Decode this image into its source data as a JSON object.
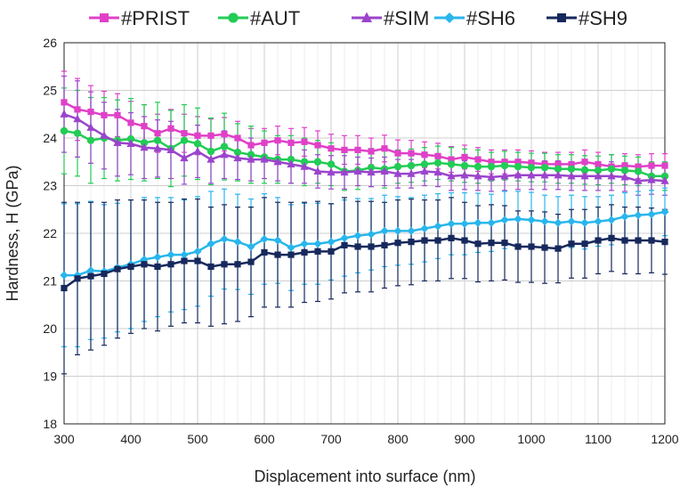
{
  "chart_data": {
    "type": "line",
    "xlabel": "Displacement into surface (nm)",
    "ylabel": "Hardness, H (GPa)",
    "xlim": [
      300,
      1200
    ],
    "ylim": [
      18,
      26
    ],
    "xticks": [
      300,
      400,
      500,
      600,
      700,
      800,
      900,
      1000,
      1100,
      1200
    ],
    "yticks": [
      18,
      19,
      20,
      21,
      22,
      23,
      24,
      25,
      26
    ],
    "grid": true,
    "legend": "top",
    "x": [
      300,
      320,
      340,
      360,
      380,
      400,
      420,
      440,
      460,
      480,
      500,
      520,
      540,
      560,
      580,
      600,
      620,
      640,
      660,
      680,
      700,
      720,
      740,
      760,
      780,
      800,
      820,
      840,
      860,
      880,
      900,
      920,
      940,
      960,
      980,
      1000,
      1020,
      1040,
      1060,
      1080,
      1100,
      1120,
      1140,
      1160,
      1180,
      1200
    ],
    "series": [
      {
        "name": "#PRIST",
        "color": "#e040c8",
        "marker": "square",
        "values": [
          24.75,
          24.6,
          24.55,
          24.48,
          24.48,
          24.32,
          24.25,
          24.1,
          24.2,
          24.1,
          24.05,
          24.05,
          24.08,
          24.0,
          23.85,
          23.9,
          23.95,
          23.9,
          23.92,
          23.85,
          23.78,
          23.75,
          23.75,
          23.72,
          23.78,
          23.68,
          23.68,
          23.65,
          23.62,
          23.55,
          23.6,
          23.55,
          23.5,
          23.5,
          23.5,
          23.48,
          23.45,
          23.45,
          23.45,
          23.5,
          23.45,
          23.4,
          23.42,
          23.4,
          23.42,
          23.42
        ],
        "errors": [
          0.65,
          0.65,
          0.55,
          0.5,
          0.45,
          0.45,
          0.45,
          0.4,
          0.4,
          0.4,
          0.4,
          0.35,
          0.35,
          0.35,
          0.35,
          0.3,
          0.3,
          0.3,
          0.3,
          0.3,
          0.3,
          0.3,
          0.3,
          0.28,
          0.28,
          0.28,
          0.27,
          0.27,
          0.27,
          0.27,
          0.25,
          0.25,
          0.25,
          0.25,
          0.25,
          0.25,
          0.25,
          0.25,
          0.25,
          0.25,
          0.25,
          0.25,
          0.25,
          0.25,
          0.25,
          0.25
        ]
      },
      {
        "name": "#AUT",
        "color": "#22cc55",
        "marker": "circle",
        "values": [
          24.15,
          24.1,
          23.95,
          24.0,
          23.95,
          23.98,
          23.9,
          23.95,
          23.78,
          23.95,
          23.88,
          23.72,
          23.82,
          23.7,
          23.65,
          23.6,
          23.55,
          23.55,
          23.5,
          23.5,
          23.45,
          23.3,
          23.32,
          23.38,
          23.35,
          23.4,
          23.42,
          23.45,
          23.48,
          23.45,
          23.42,
          23.4,
          23.4,
          23.42,
          23.4,
          23.38,
          23.38,
          23.35,
          23.35,
          23.33,
          23.32,
          23.35,
          23.32,
          23.3,
          23.2,
          23.2
        ],
        "errors": [
          0.9,
          0.9,
          0.9,
          0.85,
          0.85,
          0.85,
          0.8,
          0.8,
          0.8,
          0.75,
          0.75,
          0.7,
          0.7,
          0.6,
          0.6,
          0.55,
          0.5,
          0.5,
          0.5,
          0.45,
          0.45,
          0.4,
          0.4,
          0.4,
          0.4,
          0.35,
          0.35,
          0.35,
          0.35,
          0.35,
          0.35,
          0.35,
          0.3,
          0.3,
          0.3,
          0.3,
          0.3,
          0.3,
          0.3,
          0.3,
          0.3,
          0.3,
          0.3,
          0.3,
          0.3,
          0.3
        ]
      },
      {
        "name": "#SIM",
        "color": "#9b44cc",
        "marker": "triangle",
        "values": [
          24.5,
          24.4,
          24.22,
          24.05,
          23.9,
          23.88,
          23.8,
          23.78,
          23.75,
          23.58,
          23.72,
          23.55,
          23.65,
          23.58,
          23.55,
          23.55,
          23.5,
          23.45,
          23.4,
          23.3,
          23.28,
          23.28,
          23.3,
          23.28,
          23.3,
          23.25,
          23.25,
          23.3,
          23.28,
          23.2,
          23.22,
          23.2,
          23.18,
          23.2,
          23.22,
          23.22,
          23.22,
          23.22,
          23.2,
          23.2,
          23.2,
          23.2,
          23.18,
          23.1,
          23.12,
          23.1
        ],
        "errors": [
          0.8,
          0.8,
          0.75,
          0.7,
          0.7,
          0.65,
          0.65,
          0.6,
          0.6,
          0.55,
          0.55,
          0.5,
          0.5,
          0.45,
          0.45,
          0.4,
          0.4,
          0.4,
          0.35,
          0.35,
          0.35,
          0.35,
          0.3,
          0.3,
          0.3,
          0.3,
          0.3,
          0.3,
          0.3,
          0.3,
          0.3,
          0.3,
          0.3,
          0.3,
          0.3,
          0.3,
          0.3,
          0.3,
          0.3,
          0.3,
          0.3,
          0.3,
          0.3,
          0.3,
          0.3,
          0.3
        ]
      },
      {
        "name": "#SH6",
        "color": "#29b6ec",
        "marker": "diamond",
        "values": [
          21.12,
          21.12,
          21.22,
          21.2,
          21.28,
          21.35,
          21.45,
          21.5,
          21.55,
          21.55,
          21.62,
          21.78,
          21.88,
          21.82,
          21.72,
          21.88,
          21.85,
          21.7,
          21.78,
          21.78,
          21.82,
          21.9,
          21.95,
          21.98,
          22.05,
          22.05,
          22.05,
          22.1,
          22.15,
          22.2,
          22.2,
          22.22,
          22.22,
          22.28,
          22.3,
          22.28,
          22.25,
          22.22,
          22.25,
          22.22,
          22.25,
          22.28,
          22.35,
          22.38,
          22.4,
          22.45
        ],
        "errors": [
          1.5,
          1.5,
          1.45,
          1.4,
          1.35,
          1.35,
          1.3,
          1.25,
          1.2,
          1.15,
          1.15,
          1.1,
          1.05,
          1.0,
          1.0,
          0.95,
          0.9,
          0.9,
          0.85,
          0.85,
          0.8,
          0.8,
          0.78,
          0.75,
          0.75,
          0.72,
          0.7,
          0.7,
          0.68,
          0.65,
          0.65,
          0.62,
          0.6,
          0.6,
          0.58,
          0.58,
          0.55,
          0.55,
          0.55,
          0.55,
          0.52,
          0.52,
          0.5,
          0.5,
          0.5,
          0.5
        ]
      },
      {
        "name": "#SH9",
        "color": "#16285c",
        "marker": "square",
        "values": [
          20.85,
          21.05,
          21.1,
          21.15,
          21.25,
          21.3,
          21.35,
          21.3,
          21.35,
          21.42,
          21.42,
          21.3,
          21.35,
          21.35,
          21.4,
          21.6,
          21.55,
          21.55,
          21.6,
          21.62,
          21.62,
          21.75,
          21.72,
          21.72,
          21.75,
          21.8,
          21.82,
          21.85,
          21.85,
          21.9,
          21.85,
          21.78,
          21.8,
          21.8,
          21.72,
          21.72,
          21.7,
          21.68,
          21.78,
          21.78,
          21.85,
          21.9,
          21.85,
          21.85,
          21.85,
          21.82
        ],
        "errors": [
          1.8,
          1.6,
          1.55,
          1.5,
          1.45,
          1.4,
          1.35,
          1.35,
          1.3,
          1.3,
          1.3,
          1.25,
          1.25,
          1.2,
          1.15,
          1.15,
          1.1,
          1.1,
          1.05,
          1.05,
          1.0,
          1.0,
          0.95,
          0.95,
          0.9,
          0.9,
          0.9,
          0.85,
          0.85,
          0.85,
          0.8,
          0.8,
          0.8,
          0.78,
          0.75,
          0.75,
          0.75,
          0.72,
          0.72,
          0.72,
          0.7,
          0.7,
          0.7,
          0.7,
          0.68,
          0.68
        ]
      }
    ]
  }
}
